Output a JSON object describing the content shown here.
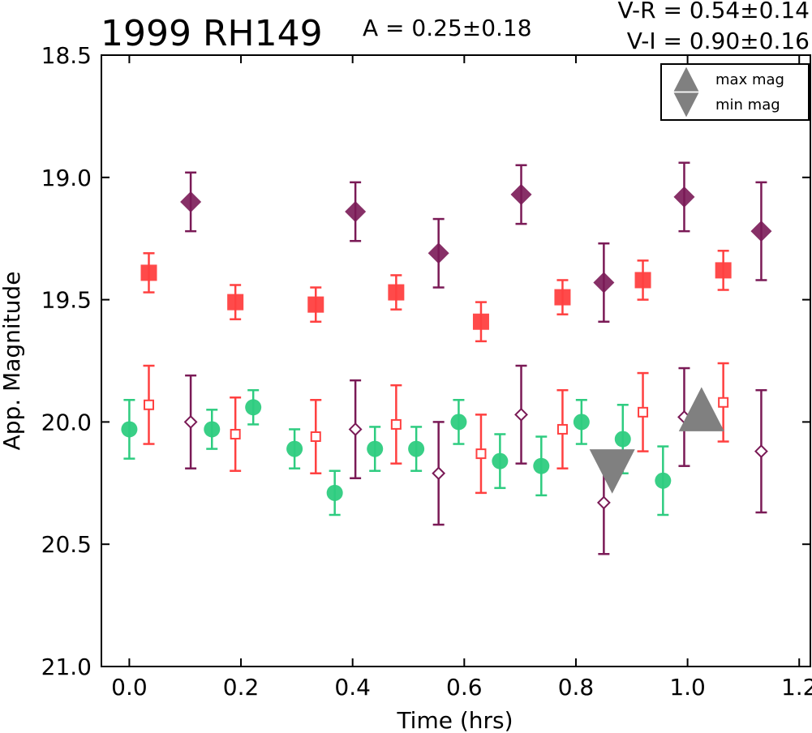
{
  "chart_data": {
    "type": "scatter",
    "title": "1999 RH149",
    "annotations": {
      "amplitude": "A  = 0.25±0.18",
      "v_minus_r": "V-R = 0.54±0.14",
      "v_minus_i": "V-I  = 0.90±0.16"
    },
    "xlabel": "Time (hrs)",
    "ylabel": "App. Magnitude",
    "xlim": [
      -0.05,
      1.22
    ],
    "ylim": [
      21.0,
      18.5
    ],
    "y_inverted": true,
    "xticks": [
      0.0,
      0.2,
      0.4,
      0.6,
      0.8,
      1.0,
      1.2
    ],
    "xtick_labels": [
      "0.0",
      "0.2",
      "0.4",
      "0.6",
      "0.8",
      "1.0",
      "1.2"
    ],
    "yticks": [
      18.5,
      19.0,
      19.5,
      20.0,
      20.5,
      21.0
    ],
    "ytick_labels": [
      "18.5",
      "19.0",
      "19.5",
      "20.0",
      "20.5",
      "21.0"
    ],
    "grid": false,
    "legend_position": "top-right",
    "legend": [
      {
        "label": "max mag",
        "marker": "triangle-up",
        "color": "#808080"
      },
      {
        "label": "min mag",
        "marker": "triangle-down",
        "color": "#808080"
      }
    ],
    "series": [
      {
        "marker": "circle",
        "color": "#2ecc80",
        "points": [
          {
            "x": 0.0,
            "y": 20.03,
            "err": 0.12
          },
          {
            "x": 0.148,
            "y": 20.03,
            "err": 0.08
          },
          {
            "x": 0.222,
            "y": 19.94,
            "err": 0.07
          },
          {
            "x": 0.296,
            "y": 20.11,
            "err": 0.08
          },
          {
            "x": 0.368,
            "y": 20.29,
            "err": 0.09
          },
          {
            "x": 0.44,
            "y": 20.11,
            "err": 0.09
          },
          {
            "x": 0.514,
            "y": 20.11,
            "err": 0.09
          },
          {
            "x": 0.59,
            "y": 20.0,
            "err": 0.09
          },
          {
            "x": 0.664,
            "y": 20.16,
            "err": 0.11
          },
          {
            "x": 0.738,
            "y": 20.18,
            "err": 0.12
          },
          {
            "x": 0.81,
            "y": 20.0,
            "err": 0.09
          },
          {
            "x": 0.884,
            "y": 20.07,
            "err": 0.14
          },
          {
            "x": 0.956,
            "y": 20.24,
            "err": 0.14
          }
        ]
      },
      {
        "marker": "square",
        "color": "#ff4040",
        "points": [
          {
            "x": 0.035,
            "y": 19.39,
            "err": 0.08
          },
          {
            "x": 0.19,
            "y": 19.51,
            "err": 0.07
          },
          {
            "x": 0.334,
            "y": 19.52,
            "err": 0.07
          },
          {
            "x": 0.478,
            "y": 19.47,
            "err": 0.07
          },
          {
            "x": 0.63,
            "y": 19.59,
            "err": 0.08
          },
          {
            "x": 0.776,
            "y": 19.49,
            "err": 0.07
          },
          {
            "x": 0.92,
            "y": 19.42,
            "err": 0.08
          },
          {
            "x": 1.064,
            "y": 19.38,
            "err": 0.08
          }
        ]
      },
      {
        "marker": "diamond",
        "color": "#7a1a56",
        "points": [
          {
            "x": 0.11,
            "y": 19.1,
            "err": 0.12
          },
          {
            "x": 0.405,
            "y": 19.14,
            "err": 0.12
          },
          {
            "x": 0.554,
            "y": 19.31,
            "err": 0.14
          },
          {
            "x": 0.702,
            "y": 19.07,
            "err": 0.12
          },
          {
            "x": 0.85,
            "y": 19.43,
            "err": 0.16
          },
          {
            "x": 0.994,
            "y": 19.08,
            "err": 0.14
          },
          {
            "x": 1.132,
            "y": 19.22,
            "err": 0.2
          }
        ]
      },
      {
        "marker": "square-open",
        "color": "#ff4040",
        "points": [
          {
            "x": 0.035,
            "y": 19.93,
            "err": 0.16
          },
          {
            "x": 0.19,
            "y": 20.05,
            "err": 0.15
          },
          {
            "x": 0.334,
            "y": 20.06,
            "err": 0.15
          },
          {
            "x": 0.478,
            "y": 20.01,
            "err": 0.16
          },
          {
            "x": 0.63,
            "y": 20.13,
            "err": 0.16
          },
          {
            "x": 0.776,
            "y": 20.03,
            "err": 0.16
          },
          {
            "x": 0.92,
            "y": 19.96,
            "err": 0.16
          },
          {
            "x": 1.064,
            "y": 19.92,
            "err": 0.16
          }
        ]
      },
      {
        "marker": "diamond-open",
        "color": "#7a1a56",
        "points": [
          {
            "x": 0.11,
            "y": 20.0,
            "err": 0.19
          },
          {
            "x": 0.405,
            "y": 20.03,
            "err": 0.2
          },
          {
            "x": 0.554,
            "y": 20.21,
            "err": 0.21
          },
          {
            "x": 0.702,
            "y": 19.97,
            "err": 0.2
          },
          {
            "x": 0.85,
            "y": 20.33,
            "err": 0.21
          },
          {
            "x": 0.994,
            "y": 19.98,
            "err": 0.2
          },
          {
            "x": 1.132,
            "y": 20.12,
            "err": 0.25
          }
        ]
      },
      {
        "marker": "triangle-up",
        "color": "#808080",
        "label": "max mag",
        "points": [
          {
            "x": 1.025,
            "y": 19.95
          }
        ]
      },
      {
        "marker": "triangle-down",
        "color": "#808080",
        "label": "min mag",
        "points": [
          {
            "x": 0.865,
            "y": 20.2
          }
        ]
      }
    ]
  }
}
